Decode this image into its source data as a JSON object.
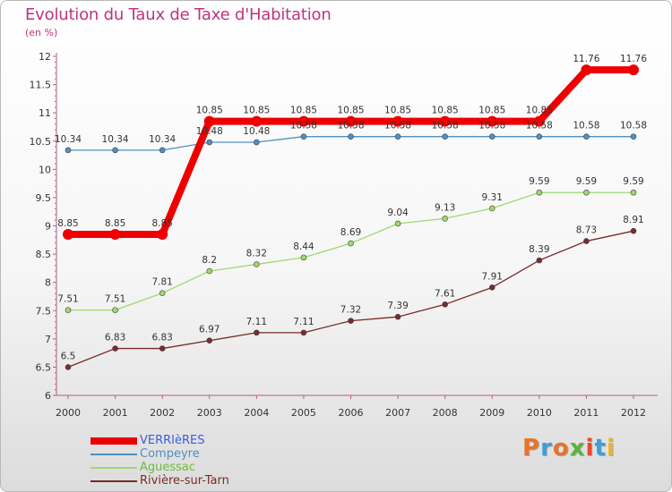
{
  "title": "Evolution du Taux de Taxe d'Habitation",
  "subtitle": "(en %)",
  "logo": {
    "text": "Proxiti",
    "colors": [
      "#e8732c",
      "#3aa0d8",
      "#e8732c",
      "#5ab43c",
      "#e84a2c",
      "#3aa0d8",
      "#e8b62c"
    ]
  },
  "chart_data": {
    "type": "line",
    "title": "Evolution du Taux de Taxe d'Habitation",
    "subtitle": "(en %)",
    "xlabel": "",
    "ylabel": "",
    "x": [
      "2000",
      "2001",
      "2002",
      "2003",
      "2004",
      "2005",
      "2006",
      "2007",
      "2008",
      "2009",
      "2010",
      "2011",
      "2012"
    ],
    "ylim": [
      6,
      12
    ],
    "yticks": [
      "6",
      "6.5",
      "7",
      "7.5",
      "8",
      "8.5",
      "9",
      "9.5",
      "10",
      "10.5",
      "11",
      "11.5",
      "12"
    ],
    "grid": false,
    "legend_position": "bottom-left",
    "series": [
      {
        "name": "VERRIèRES",
        "color": "#ee0000",
        "values": [
          8.85,
          8.85,
          8.85,
          10.85,
          10.85,
          10.85,
          10.85,
          10.85,
          10.85,
          10.85,
          10.85,
          11.76,
          11.76
        ],
        "labels": [
          "8.85",
          "8.85",
          "8.85",
          "10.85",
          "10.85",
          "10.85",
          "10.85",
          "10.85",
          "10.85",
          "10.85",
          "10.85",
          "11.76",
          "11.76"
        ]
      },
      {
        "name": "Compeyre",
        "color": "#4f8fc2",
        "values": [
          10.34,
          10.34,
          10.34,
          10.48,
          10.48,
          10.58,
          10.58,
          10.58,
          10.58,
          10.58,
          10.58,
          10.58,
          10.58
        ],
        "labels": [
          "10.34",
          "10.34",
          "10.34",
          "10.48",
          "10.48",
          "10.58",
          "10.58",
          "10.58",
          "10.58",
          "10.58",
          "10.58",
          "10.58",
          "10.58"
        ]
      },
      {
        "name": "Aguessac",
        "color": "#9ed86e",
        "values": [
          7.51,
          7.51,
          7.81,
          8.2,
          8.32,
          8.44,
          8.69,
          9.04,
          9.13,
          9.31,
          9.59,
          9.59,
          9.59
        ],
        "labels": [
          "7.51",
          "7.51",
          "7.81",
          "8.2",
          "8.32",
          "8.44",
          "8.69",
          "9.04",
          "9.13",
          "9.31",
          "9.59",
          "9.59",
          "9.59"
        ]
      },
      {
        "name": "Rivière-sur-Tarn",
        "color": "#7a2a2a",
        "values": [
          6.5,
          6.83,
          6.83,
          6.97,
          7.11,
          7.11,
          7.32,
          7.39,
          7.61,
          7.91,
          8.39,
          8.73,
          8.91
        ],
        "labels": [
          "6.5",
          "6.83",
          "6.83",
          "6.97",
          "7.11",
          "7.11",
          "7.32",
          "7.39",
          "7.61",
          "7.91",
          "8.39",
          "8.73",
          "8.91"
        ]
      }
    ]
  }
}
